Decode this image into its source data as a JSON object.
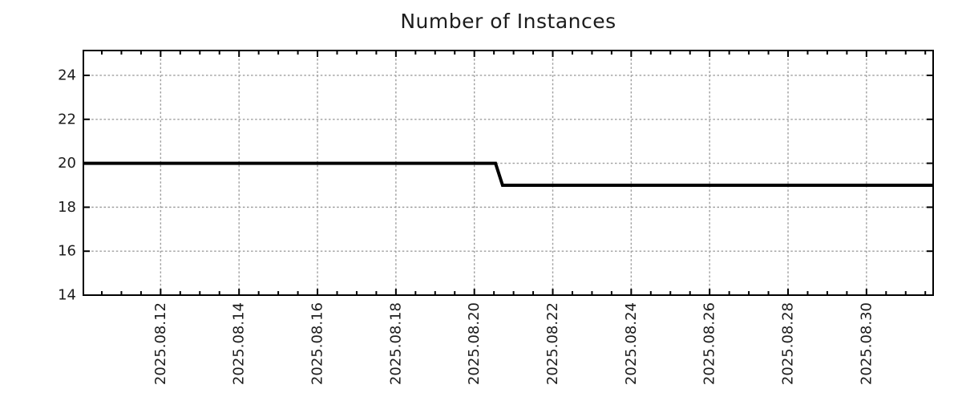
{
  "chart_data": {
    "type": "line",
    "title": "Number of Instances",
    "legend": "none",
    "x_axis": {
      "unit": "date (fractional day of 2025.08)",
      "range": [
        10.03,
        31.7
      ],
      "tick_values": [
        12,
        14,
        16,
        18,
        20,
        22,
        24,
        26,
        28,
        30
      ],
      "tick_labels": [
        "2025.08.12",
        "2025.08.14",
        "2025.08.16",
        "2025.08.18",
        "2025.08.20",
        "2025.08.22",
        "2025.08.24",
        "2025.08.26",
        "2025.08.28",
        "2025.08.30"
      ],
      "minor_tick_step": 0.5,
      "label_rotation_deg": -90
    },
    "y_axis": {
      "range": [
        14,
        25.13
      ],
      "tick_values": [
        14,
        16,
        18,
        20,
        22,
        24
      ],
      "tick_labels": [
        "14",
        "16",
        "18",
        "20",
        "22",
        "24"
      ]
    },
    "series": [
      {
        "name": "number-of-instances",
        "color": "#000000",
        "line_width": 4,
        "points": [
          [
            10.03,
            20
          ],
          [
            20.54,
            20
          ],
          [
            20.72,
            19
          ],
          [
            31.7,
            19
          ]
        ],
        "description": "Flat at 20 instances from start until ~2025.08.20 13:00, steps down to 19 by ~2025.08.20 17:00, flat at 19 until end"
      }
    ],
    "grid": {
      "visible": true,
      "style": "dotted",
      "color": "#9e9e9e",
      "major_x": true,
      "major_y": true
    },
    "frame": {
      "border_color": "#000000",
      "tick_color": "#000000",
      "major_tick_len": 8,
      "minor_tick_len": 5
    }
  }
}
